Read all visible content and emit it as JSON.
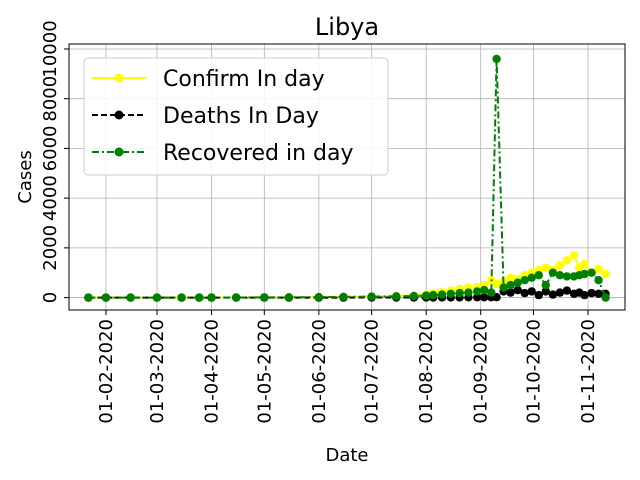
{
  "chart_data": {
    "type": "line",
    "title": "Libya",
    "xlabel": "Date",
    "ylabel": "Cases",
    "grid": true,
    "legend_position": "upper-left",
    "x_range": [
      "2020-01-11",
      "2020-11-22"
    ],
    "ylim": [
      -500,
      10200
    ],
    "x_ticks": [
      {
        "date": "2020-02-01",
        "label": "01-02-2020"
      },
      {
        "date": "2020-03-01",
        "label": "01-03-2020"
      },
      {
        "date": "2020-04-01",
        "label": "01-04-2020"
      },
      {
        "date": "2020-05-01",
        "label": "01-05-2020"
      },
      {
        "date": "2020-06-01",
        "label": "01-06-2020"
      },
      {
        "date": "2020-07-01",
        "label": "01-07-2020"
      },
      {
        "date": "2020-08-01",
        "label": "01-08-2020"
      },
      {
        "date": "2020-09-01",
        "label": "01-09-2020"
      },
      {
        "date": "2020-10-01",
        "label": "01-10-2020"
      },
      {
        "date": "2020-11-01",
        "label": "01-11-2020"
      }
    ],
    "y_ticks": [
      {
        "value": 0,
        "label": "0"
      },
      {
        "value": 2000,
        "label": "2000"
      },
      {
        "value": 4000,
        "label": "4000"
      },
      {
        "value": 6000,
        "label": "6000"
      },
      {
        "value": 8000,
        "label": "8000"
      },
      {
        "value": 10000,
        "label": "10000"
      }
    ],
    "x_dates": [
      "2020-01-22",
      "2020-02-01",
      "2020-02-15",
      "2020-03-01",
      "2020-03-15",
      "2020-03-25",
      "2020-04-01",
      "2020-04-15",
      "2020-05-01",
      "2020-05-15",
      "2020-06-01",
      "2020-06-15",
      "2020-07-01",
      "2020-07-15",
      "2020-07-25",
      "2020-08-01",
      "2020-08-05",
      "2020-08-10",
      "2020-08-15",
      "2020-08-20",
      "2020-08-25",
      "2020-08-30",
      "2020-09-03",
      "2020-09-07",
      "2020-09-10",
      "2020-09-14",
      "2020-09-18",
      "2020-09-22",
      "2020-09-26",
      "2020-09-30",
      "2020-10-04",
      "2020-10-08",
      "2020-10-12",
      "2020-10-16",
      "2020-10-20",
      "2020-10-24",
      "2020-10-27",
      "2020-10-30",
      "2020-11-03",
      "2020-11-07",
      "2020-11-11"
    ],
    "series": [
      {
        "name": "Confirm In day",
        "color": "#ffff00",
        "line_style": "solid",
        "marker": "circle",
        "values": [
          0,
          0,
          0,
          0,
          0,
          0,
          2,
          3,
          5,
          4,
          10,
          20,
          40,
          60,
          90,
          120,
          180,
          220,
          280,
          350,
          400,
          420,
          500,
          700,
          550,
          650,
          800,
          750,
          900,
          1000,
          1100,
          1200,
          1100,
          1300,
          1500,
          1700,
          1200,
          1350,
          1000,
          1150,
          950
        ]
      },
      {
        "name": "Deaths In Day",
        "color": "#000000",
        "line_style": "dashed",
        "marker": "circle",
        "values": [
          0,
          0,
          0,
          0,
          0,
          0,
          0,
          0,
          0,
          0,
          0,
          0,
          1,
          1,
          2,
          3,
          4,
          5,
          6,
          8,
          10,
          10,
          12,
          12,
          15,
          250,
          200,
          300,
          180,
          250,
          100,
          250,
          120,
          200,
          280,
          150,
          200,
          100,
          180,
          150,
          150
        ]
      },
      {
        "name": "Recovered in day",
        "color": "#008000",
        "line_style": "dashdot",
        "marker": "circle",
        "values": [
          0,
          0,
          0,
          0,
          0,
          0,
          0,
          1,
          5,
          10,
          20,
          30,
          40,
          50,
          60,
          80,
          100,
          120,
          150,
          180,
          200,
          250,
          300,
          200,
          9600,
          400,
          500,
          600,
          700,
          800,
          900,
          500,
          1000,
          900,
          850,
          850,
          900,
          950,
          1000,
          700,
          0
        ]
      }
    ]
  }
}
